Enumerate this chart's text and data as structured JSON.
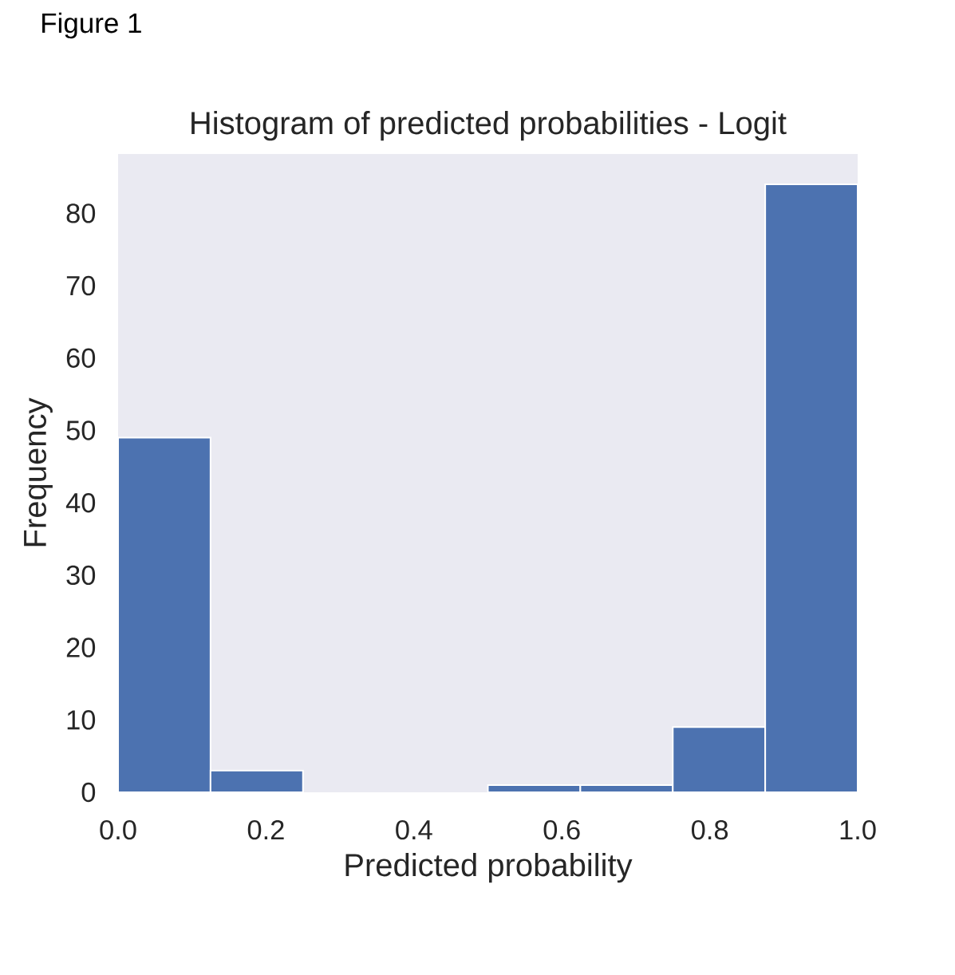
{
  "chart_data": {
    "type": "histogram",
    "title": "Histogram of predicted probabilities - Logit",
    "xlabel": "Predicted probability",
    "ylabel": "Frequency",
    "bins": [
      0,
      0.125,
      0.25,
      0.375,
      0.5,
      0.625,
      0.75,
      0.875,
      1
    ],
    "values": [
      49,
      3,
      0,
      0,
      1,
      1,
      9,
      84
    ],
    "color": "#4c72b0",
    "xlim": [
      0,
      1
    ],
    "ylim": [
      0,
      88.2
    ],
    "xticks": [
      {
        "value": 0,
        "label": "0.0"
      },
      0.2,
      0.4,
      0.6,
      0.8,
      {
        "value": 1,
        "label": "1.0"
      }
    ],
    "yticks": [
      0,
      10,
      20,
      30,
      40,
      50,
      60,
      70,
      80
    ],
    "annotations": [
      "Figure 1"
    ]
  }
}
